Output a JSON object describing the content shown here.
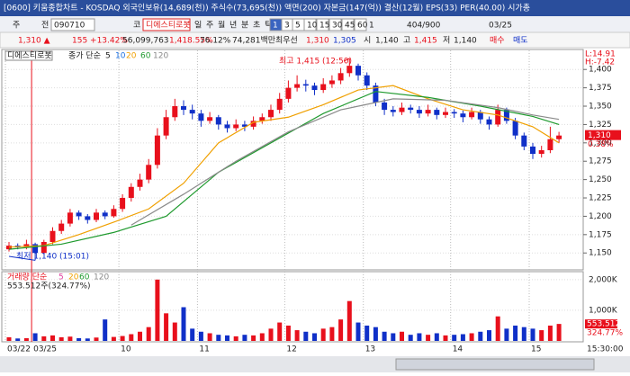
{
  "header": {
    "title": "[0600] 키움종합차트 - KOSDAQ 외국인보유(14,689(천)) 주식수(73,695(천)) 액면(200) 자본금(147(억)) 결산(12월) EPS(33) PER(40.00) 시가총"
  },
  "toolbar": {
    "items": [
      "주",
      "전",
      "090710",
      "코",
      "디에스티로봇",
      "일",
      "주",
      "월",
      "년",
      "분",
      "초",
      "틱",
      "1",
      "3",
      "5",
      "10",
      "15",
      "30",
      "45",
      "60",
      "1",
      "404/900",
      "03/25"
    ]
  },
  "info": {
    "items": [
      "1,310 ▲",
      "155 +13.42%",
      "56,099,763",
      "1,418.55%",
      "76.12%",
      "74,281백만",
      "최우선",
      "1,310",
      "1,305",
      "시",
      "1,140",
      "고",
      "1,415",
      "저",
      "1,140",
      "매수",
      "매도"
    ]
  },
  "chart_data": {
    "type": "candlestick",
    "pane_title": "디에스티로봇",
    "ma_label": "종가 단순",
    "categories": [
      "03/22",
      null,
      null,
      "03/25",
      null,
      null,
      null,
      null,
      null,
      null,
      null,
      null,
      null,
      "10",
      null,
      null,
      null,
      null,
      null,
      null,
      null,
      null,
      "11",
      null,
      null,
      null,
      null,
      null,
      null,
      null,
      null,
      null,
      "12",
      null,
      null,
      null,
      null,
      null,
      null,
      null,
      null,
      "13",
      null,
      null,
      null,
      null,
      null,
      null,
      null,
      null,
      null,
      "14",
      null,
      null,
      null,
      null,
      null,
      null,
      null,
      null,
      "15",
      null,
      null,
      null
    ],
    "candles": [
      [
        1155,
        1165,
        1152,
        1160
      ],
      [
        1160,
        1163,
        1155,
        1158
      ],
      [
        1158,
        1168,
        1155,
        1162
      ],
      [
        1162,
        1164,
        1140,
        1150
      ],
      [
        1150,
        1168,
        1148,
        1165
      ],
      [
        1165,
        1185,
        1162,
        1180
      ],
      [
        1180,
        1195,
        1176,
        1190
      ],
      [
        1190,
        1210,
        1186,
        1205
      ],
      [
        1205,
        1208,
        1195,
        1200
      ],
      [
        1200,
        1203,
        1190,
        1195
      ],
      [
        1195,
        1210,
        1192,
        1205
      ],
      [
        1205,
        1208,
        1196,
        1200
      ],
      [
        1200,
        1215,
        1198,
        1210
      ],
      [
        1210,
        1230,
        1206,
        1225
      ],
      [
        1225,
        1245,
        1220,
        1240
      ],
      [
        1240,
        1258,
        1235,
        1250
      ],
      [
        1250,
        1278,
        1245,
        1270
      ],
      [
        1270,
        1320,
        1265,
        1310
      ],
      [
        1310,
        1345,
        1305,
        1335
      ],
      [
        1335,
        1360,
        1330,
        1350
      ],
      [
        1350,
        1358,
        1338,
        1345
      ],
      [
        1345,
        1352,
        1332,
        1340
      ],
      [
        1340,
        1345,
        1322,
        1330
      ],
      [
        1330,
        1342,
        1326,
        1335
      ],
      [
        1335,
        1338,
        1318,
        1325
      ],
      [
        1325,
        1330,
        1314,
        1320
      ],
      [
        1320,
        1332,
        1316,
        1325
      ],
      [
        1325,
        1330,
        1316,
        1322
      ],
      [
        1322,
        1336,
        1318,
        1330
      ],
      [
        1330,
        1340,
        1326,
        1335
      ],
      [
        1335,
        1352,
        1330,
        1345
      ],
      [
        1345,
        1368,
        1340,
        1360
      ],
      [
        1360,
        1385,
        1355,
        1375
      ],
      [
        1375,
        1392,
        1370,
        1380
      ],
      [
        1380,
        1386,
        1370,
        1378
      ],
      [
        1378,
        1382,
        1365,
        1372
      ],
      [
        1372,
        1388,
        1368,
        1380
      ],
      [
        1380,
        1392,
        1375,
        1385
      ],
      [
        1385,
        1402,
        1380,
        1395
      ],
      [
        1395,
        1415,
        1390,
        1405
      ],
      [
        1405,
        1408,
        1385,
        1392
      ],
      [
        1392,
        1396,
        1372,
        1378
      ],
      [
        1378,
        1382,
        1350,
        1355
      ],
      [
        1355,
        1360,
        1338,
        1345
      ],
      [
        1345,
        1350,
        1336,
        1342
      ],
      [
        1342,
        1355,
        1338,
        1348
      ],
      [
        1348,
        1352,
        1340,
        1345
      ],
      [
        1345,
        1350,
        1334,
        1340
      ],
      [
        1340,
        1352,
        1336,
        1345
      ],
      [
        1345,
        1348,
        1332,
        1338
      ],
      [
        1338,
        1348,
        1334,
        1342
      ],
      [
        1342,
        1346,
        1334,
        1340
      ],
      [
        1340,
        1344,
        1328,
        1335
      ],
      [
        1335,
        1348,
        1332,
        1342
      ],
      [
        1342,
        1345,
        1326,
        1332
      ],
      [
        1332,
        1336,
        1318,
        1325
      ],
      [
        1325,
        1352,
        1322,
        1345
      ],
      [
        1345,
        1348,
        1326,
        1330
      ],
      [
        1330,
        1334,
        1305,
        1310
      ],
      [
        1310,
        1314,
        1290,
        1295
      ],
      [
        1295,
        1300,
        1278,
        1285
      ],
      [
        1285,
        1296,
        1280,
        1290
      ],
      [
        1290,
        1322,
        1286,
        1305
      ],
      [
        1305,
        1315,
        1300,
        1310
      ]
    ],
    "up_color": "#e8101c",
    "down_color": "#1030c8",
    "ylim": [
      1127,
      1426
    ],
    "yticks": [
      {
        "value": 1150,
        "label": "1,150"
      },
      {
        "value": 1175,
        "label": "1,175"
      },
      {
        "value": 1200,
        "label": "1,200"
      },
      {
        "value": 1225,
        "label": "1,225"
      },
      {
        "value": 1250,
        "label": "1,250"
      },
      {
        "value": 1275,
        "label": "1,275"
      },
      {
        "value": 1300,
        "label": "1,300"
      },
      {
        "value": 1325,
        "label": "1,325"
      },
      {
        "value": 1350,
        "label": "1,350"
      },
      {
        "value": 1375,
        "label": "1,375"
      },
      {
        "value": 1400,
        "label": "1,400"
      }
    ],
    "series": [
      {
        "name": "5",
        "color": "#202020",
        "x": [],
        "values": []
      },
      {
        "name": "10",
        "color": "#1b6fe0",
        "x": [],
        "values": []
      },
      {
        "name": "20",
        "color": "#f0a000",
        "x": [
          0,
          4,
          8,
          12,
          16,
          20,
          24,
          28,
          32,
          36,
          40,
          44,
          48,
          52,
          56,
          60,
          63
        ],
        "values": [
          1158,
          1160,
          1175,
          1192,
          1210,
          1245,
          1300,
          1328,
          1335,
          1352,
          1372,
          1378,
          1360,
          1345,
          1338,
          1322,
          1300
        ]
      },
      {
        "name": "60",
        "color": "#1f9a2e",
        "x": [
          0,
          6,
          12,
          18,
          24,
          30,
          36,
          42,
          48,
          54,
          60,
          63
        ],
        "values": [
          1155,
          1162,
          1178,
          1200,
          1260,
          1300,
          1340,
          1370,
          1362,
          1350,
          1336,
          1325
        ]
      },
      {
        "name": "120",
        "color": "#8a8a8a",
        "x": [
          14,
          20,
          26,
          32,
          38,
          44,
          50,
          56,
          60,
          63
        ],
        "values": [
          1188,
          1230,
          1275,
          1315,
          1345,
          1360,
          1358,
          1348,
          1338,
          1332
        ]
      }
    ],
    "annotations": [
      "최고 1,415 (12:50)",
      "최저 1,140 (15:01)"
    ],
    "right_top": [
      "L:14.91",
      "H:-7.42"
    ],
    "price_tag": {
      "value": 1310,
      "label": "1,310",
      "change": "0.38%"
    },
    "volume": {
      "title": "거래량 단순",
      "ma_names": [
        "5",
        "20",
        "60",
        "120"
      ],
      "ma_colors": [
        "#e040a0",
        "#f0a000",
        "#1f9a2e",
        "#8a8a8a"
      ],
      "summary": "553.512주(324.77%)",
      "values": [
        120,
        80,
        90,
        250,
        150,
        180,
        120,
        140,
        90,
        80,
        110,
        700,
        130,
        160,
        220,
        300,
        450,
        2000,
        900,
        600,
        1100,
        400,
        300,
        250,
        200,
        180,
        150,
        200,
        180,
        250,
        400,
        600,
        500,
        350,
        300,
        250,
        400,
        450,
        700,
        1300,
        600,
        500,
        450,
        300,
        250,
        300,
        200,
        250,
        200,
        250,
        180,
        200,
        220,
        250,
        300,
        350,
        800,
        400,
        500,
        450,
        400,
        350,
        500,
        553.512
      ],
      "ylim": [
        0,
        2200
      ],
      "yticks": [
        {
          "value": 1000,
          "label": "1,000K"
        },
        {
          "value": 2000,
          "label": "2,000K"
        }
      ],
      "tag": [
        "553.512",
        "324.77%"
      ]
    },
    "time": "15:30:00"
  }
}
